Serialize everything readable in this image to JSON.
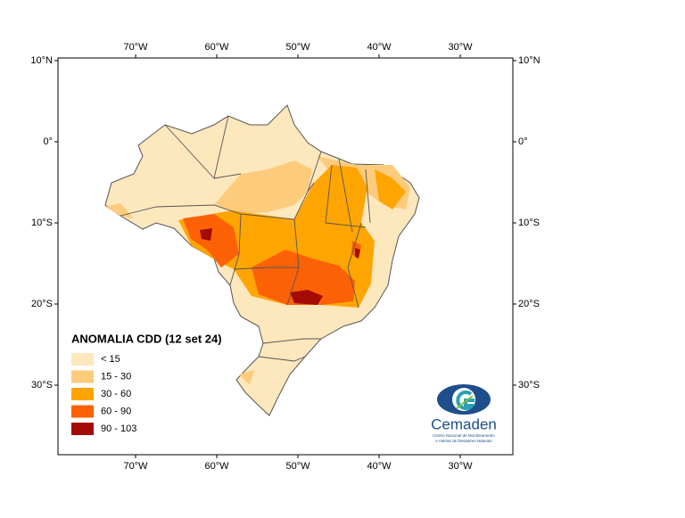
{
  "map": {
    "title": "ANOMALIA CDD (12 set 24)",
    "x_labels": [
      "70°W",
      "60°W",
      "50°W",
      "40°W",
      "30°W"
    ],
    "y_labels": [
      "10°N",
      "0°",
      "10°S",
      "20°S",
      "30°S"
    ],
    "legend": [
      {
        "label": "< 15",
        "color": "#fde7bd"
      },
      {
        "label": "15 - 30",
        "color": "#fdcb7c"
      },
      {
        "label": "30 - 60",
        "color": "#fea502"
      },
      {
        "label": "60 - 90",
        "color": "#fc6106"
      },
      {
        "label": "90 - 103",
        "color": "#a50b05"
      }
    ],
    "logo": {
      "name": "Cemaden",
      "lines": [
        "Centro Nacional de Monitoramento",
        "e Alertas de Desastres Naturais"
      ]
    }
  }
}
